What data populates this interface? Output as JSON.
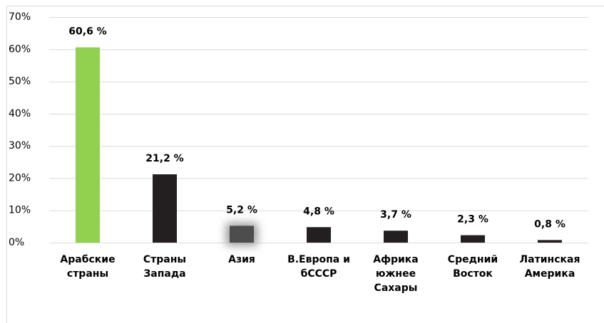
{
  "chart_data": {
    "type": "bar",
    "categories": [
      "Арабские\nстраны",
      "Страны\nЗапада",
      "Азия",
      "В.Европа и\nбСССР",
      "Африка\nюжнее\nСахары",
      "Средний\nВосток",
      "Латинская\nАмерика"
    ],
    "values": [
      60.6,
      21.2,
      5.2,
      4.8,
      3.7,
      2.3,
      0.8
    ],
    "value_labels": [
      "60,6 %",
      "21,2 %",
      "5,2 %",
      "4,8 %",
      "3,7 %",
      "2,3 %",
      "0,8 %"
    ],
    "colors": [
      "#92d050",
      "#231f20",
      "#4d4d4d",
      "#231f20",
      "#231f20",
      "#231f20",
      "#231f20"
    ],
    "ylim": [
      0,
      70
    ],
    "yticks": [
      {
        "value": 0,
        "label": "0%"
      },
      {
        "value": 10,
        "label": "10%"
      },
      {
        "value": 20,
        "label": "20%"
      },
      {
        "value": 30,
        "label": "30%"
      },
      {
        "value": 40,
        "label": "40%"
      },
      {
        "value": 50,
        "label": "50%"
      },
      {
        "value": 60,
        "label": "60%"
      },
      {
        "value": 70,
        "label": "70%"
      }
    ],
    "grid": true
  }
}
